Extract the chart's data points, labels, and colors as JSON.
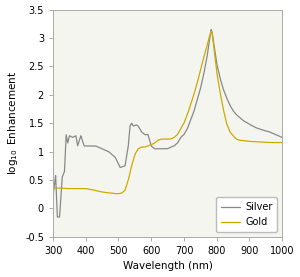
{
  "title": "",
  "xlabel": "Wavelength (nm)",
  "ylabel": "log$_{10}$ Enhancement",
  "xlim": [
    300,
    1000
  ],
  "ylim": [
    -0.5,
    3.5
  ],
  "xticks": [
    300,
    400,
    500,
    600,
    700,
    800,
    900,
    1000
  ],
  "yticks": [
    -0.5,
    0,
    0.5,
    1,
    1.5,
    2,
    2.5,
    3,
    3.5
  ],
  "silver_color": "#888888",
  "gold_color": "#ccaa00",
  "legend_labels": [
    "Silver",
    "Gold"
  ],
  "background_color": "#f5f5f0",
  "legend_pos": "lower right"
}
